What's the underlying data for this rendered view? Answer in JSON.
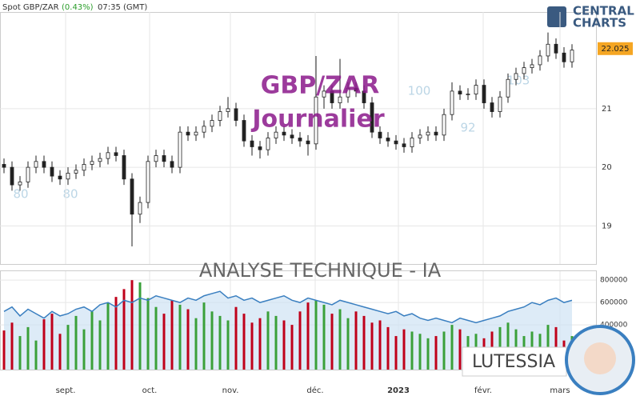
{
  "header": {
    "instrument": "Spot GBP/ZAR",
    "change": "(0.43%)",
    "time": "07:35 (GMT)"
  },
  "brand": {
    "line1": "CENTRAL",
    "line2": "CHARTS"
  },
  "badge": "LUTESSIA",
  "background_labels": [
    "80",
    "80",
    "100",
    "92",
    "103"
  ],
  "chart_data": [
    {
      "type": "candlestick",
      "title": "GBP/ZAR",
      "subtitle": "Journalier",
      "candle_color": "#222222",
      "grid": true,
      "xlim": [
        -0.5,
        74
      ],
      "xticks": [
        {
          "value": 7.7,
          "label": "sept."
        },
        {
          "value": 18.2,
          "label": "oct."
        },
        {
          "value": 28.3,
          "label": "nov."
        },
        {
          "value": 38.9,
          "label": "déc."
        },
        {
          "value": 49.3,
          "label": "2023"
        },
        {
          "value": 59.9,
          "label": "févr."
        },
        {
          "value": 69.5,
          "label": "mars"
        }
      ],
      "ylim": [
        18.35,
        22.65
      ],
      "yticks": [
        19,
        20,
        21
      ],
      "last_price": 22.025,
      "last_price_color": "#f5a623",
      "open": [
        20.05,
        20.0,
        19.7,
        19.75,
        20.0,
        20.1,
        20.0,
        19.85,
        19.8,
        19.9,
        19.95,
        20.05,
        20.1,
        20.15,
        20.25,
        20.2,
        19.8,
        19.2,
        19.4,
        20.1,
        20.2,
        20.1,
        20.0,
        20.6,
        20.55,
        20.6,
        20.7,
        20.8,
        20.95,
        21.0,
        20.8,
        20.45,
        20.35,
        20.3,
        20.5,
        20.6,
        20.55,
        20.5,
        20.45,
        20.4,
        21.2,
        21.3,
        21.1,
        21.2,
        21.35,
        21.3,
        21.1,
        20.6,
        20.5,
        20.45,
        20.4,
        20.35,
        20.5,
        20.55,
        20.6,
        20.55,
        20.9,
        21.3,
        21.25,
        21.25,
        21.4,
        21.1,
        20.95,
        21.2,
        21.5,
        21.6,
        21.7,
        21.75,
        21.9,
        22.1,
        21.95,
        21.8
      ],
      "high": [
        20.15,
        20.1,
        19.85,
        20.1,
        20.2,
        20.2,
        20.1,
        19.95,
        20.0,
        20.05,
        20.15,
        20.2,
        20.25,
        20.35,
        20.35,
        20.3,
        19.9,
        19.5,
        20.2,
        20.3,
        20.3,
        20.2,
        20.7,
        20.7,
        20.7,
        20.8,
        20.9,
        21.05,
        21.2,
        21.1,
        20.9,
        20.55,
        20.45,
        20.6,
        20.7,
        20.7,
        20.65,
        20.6,
        20.55,
        21.9,
        21.4,
        21.4,
        21.85,
        21.45,
        21.45,
        21.4,
        21.2,
        20.7,
        20.6,
        20.55,
        20.5,
        20.6,
        20.65,
        20.7,
        20.7,
        21.0,
        21.45,
        21.4,
        21.35,
        21.5,
        21.5,
        21.2,
        21.3,
        21.6,
        21.7,
        21.8,
        21.85,
        22.0,
        22.3,
        22.2,
        22.05,
        22.1
      ],
      "low": [
        19.9,
        19.6,
        19.6,
        19.65,
        19.9,
        19.9,
        19.75,
        19.7,
        19.7,
        19.8,
        19.85,
        19.95,
        20.0,
        20.05,
        20.1,
        19.7,
        18.65,
        19.05,
        19.3,
        20.0,
        20.0,
        19.9,
        19.9,
        20.45,
        20.45,
        20.5,
        20.6,
        20.7,
        20.85,
        20.7,
        20.35,
        20.2,
        20.15,
        20.2,
        20.4,
        20.45,
        20.4,
        20.35,
        20.2,
        20.3,
        21.0,
        21.0,
        21.0,
        21.1,
        21.2,
        21.0,
        20.5,
        20.4,
        20.35,
        20.3,
        20.25,
        20.25,
        20.4,
        20.45,
        20.45,
        20.45,
        20.8,
        21.15,
        21.15,
        21.15,
        21.0,
        20.85,
        20.85,
        21.1,
        21.4,
        21.5,
        21.6,
        21.65,
        21.8,
        21.85,
        21.7,
        21.7
      ],
      "close": [
        20.0,
        19.7,
        19.75,
        20.0,
        20.1,
        20.0,
        19.85,
        19.8,
        19.9,
        19.95,
        20.05,
        20.1,
        20.15,
        20.25,
        20.2,
        19.8,
        19.2,
        19.4,
        20.1,
        20.2,
        20.1,
        20.0,
        20.6,
        20.55,
        20.6,
        20.7,
        20.8,
        20.95,
        21.0,
        20.8,
        20.45,
        20.35,
        20.3,
        20.5,
        20.6,
        20.55,
        20.5,
        20.45,
        20.4,
        21.2,
        21.3,
        21.1,
        21.2,
        21.35,
        21.3,
        21.1,
        20.6,
        20.5,
        20.45,
        20.4,
        20.35,
        20.5,
        20.55,
        20.6,
        20.55,
        20.9,
        21.3,
        21.25,
        21.25,
        21.4,
        21.1,
        20.95,
        21.2,
        21.5,
        21.6,
        21.7,
        21.75,
        21.9,
        22.1,
        21.95,
        21.8,
        22.0
      ]
    },
    {
      "type": "volume",
      "title": "ANALYSE TECHNIQUE - IA",
      "up_color": "#3aa03a",
      "down_color": "#c0001a",
      "line_color": "#3a7fc0",
      "area_color": "#cfe3f3",
      "ylim": [
        0,
        880000
      ],
      "yticks": [
        800000,
        600000,
        400000
      ],
      "values": [
        350000,
        420000,
        300000,
        380000,
        260000,
        450000,
        500000,
        320000,
        400000,
        480000,
        360000,
        520000,
        440000,
        600000,
        650000,
        720000,
        800000,
        780000,
        640000,
        560000,
        500000,
        620000,
        580000,
        540000,
        460000,
        600000,
        520000,
        480000,
        440000,
        560000,
        500000,
        420000,
        460000,
        520000,
        480000,
        440000,
        400000,
        520000,
        600000,
        620000,
        580000,
        500000,
        540000,
        460000,
        520000,
        480000,
        420000,
        440000,
        380000,
        300000,
        360000,
        340000,
        320000,
        280000,
        300000,
        340000,
        400000,
        360000,
        300000,
        320000,
        280000,
        340000,
        380000,
        420000,
        360000,
        300000,
        340000,
        320000,
        400000,
        380000,
        260000,
        300000
      ],
      "line": [
        520000,
        560000,
        480000,
        540000,
        500000,
        460000,
        520000,
        480000,
        500000,
        540000,
        560000,
        520000,
        580000,
        600000,
        560000,
        620000,
        600000,
        640000,
        620000,
        660000,
        640000,
        620000,
        600000,
        640000,
        620000,
        660000,
        680000,
        700000,
        640000,
        660000,
        620000,
        640000,
        600000,
        620000,
        640000,
        660000,
        620000,
        600000,
        640000,
        620000,
        600000,
        580000,
        620000,
        600000,
        580000,
        560000,
        540000,
        520000,
        500000,
        520000,
        480000,
        500000,
        460000,
        440000,
        460000,
        440000,
        420000,
        460000,
        440000,
        420000,
        440000,
        460000,
        480000,
        520000,
        540000,
        560000,
        600000,
        580000,
        620000,
        640000,
        600000,
        620000
      ]
    }
  ]
}
